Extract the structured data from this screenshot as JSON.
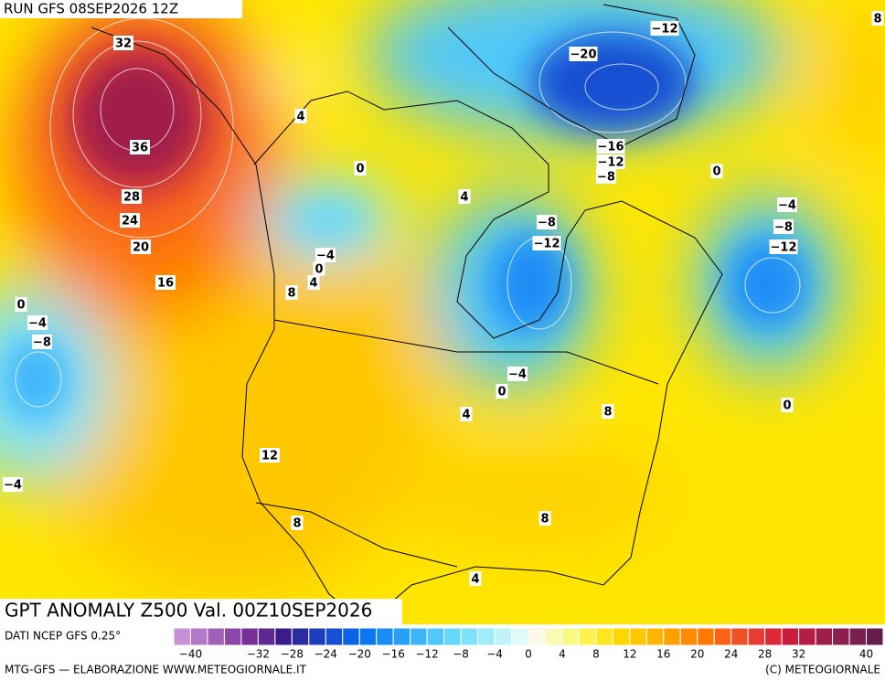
{
  "header": {
    "run": "RUN GFS 08SEP2026 12Z",
    "title": "GPT ANOMALY Z500 Val. 00Z10SEP2026",
    "source": "DATI NCEP GFS 0.25°",
    "credit": "MTG-GFS — ELABORAZIONE WWW.METEOGIORNALE.IT",
    "copyright": "(C) METEOGIORNALE"
  },
  "contour_labels": [
    "32",
    "36",
    "28",
    "24",
    "20",
    "16",
    "4",
    "0",
    "−4",
    "0",
    "4",
    "8",
    "0",
    "−4",
    "−8",
    "−4",
    "12",
    "8",
    "4",
    "8",
    "4",
    "0",
    "−4",
    "8",
    "0",
    "4",
    "−8",
    "−12",
    "−20",
    "−12",
    "−16",
    "−12",
    "−8",
    "0",
    "−4",
    "−8",
    "−12",
    "8"
  ],
  "colorbar": {
    "colors": [
      "#c890d8",
      "#b478c8",
      "#a060b8",
      "#8c48a8",
      "#783098",
      "#602890",
      "#3c1c8c",
      "#2c2ca0",
      "#1e3cbe",
      "#1450d2",
      "#0a64e6",
      "#0a78f0",
      "#1a8cf5",
      "#28a0fa",
      "#3cb4fa",
      "#50c8fa",
      "#64d7fa",
      "#80e2fa",
      "#a0ecfa",
      "#c0f4fa",
      "#e0fafa",
      "#fafae6",
      "#fafab4",
      "#fafa82",
      "#fff050",
      "#ffe61e",
      "#ffd700",
      "#ffc800",
      "#ffb400",
      "#ffa000",
      "#ff8c00",
      "#ff7800",
      "#fa6414",
      "#f05028",
      "#e63c32",
      "#dc2838",
      "#c81e3c",
      "#b41e46",
      "#a01e4b",
      "#8c1e50",
      "#781e50",
      "#641e4b"
    ],
    "ticks": [
      {
        "value": -40,
        "label": "−40"
      },
      {
        "value": -32,
        "label": "−32"
      },
      {
        "value": -28,
        "label": "−28"
      },
      {
        "value": -24,
        "label": "−24"
      },
      {
        "value": -20,
        "label": "−20"
      },
      {
        "value": -16,
        "label": "−16"
      },
      {
        "value": -12,
        "label": "−12"
      },
      {
        "value": -8,
        "label": "−8"
      },
      {
        "value": -4,
        "label": "−4"
      },
      0,
      4,
      8,
      12,
      16,
      20,
      24,
      28,
      32,
      40
    ]
  }
}
